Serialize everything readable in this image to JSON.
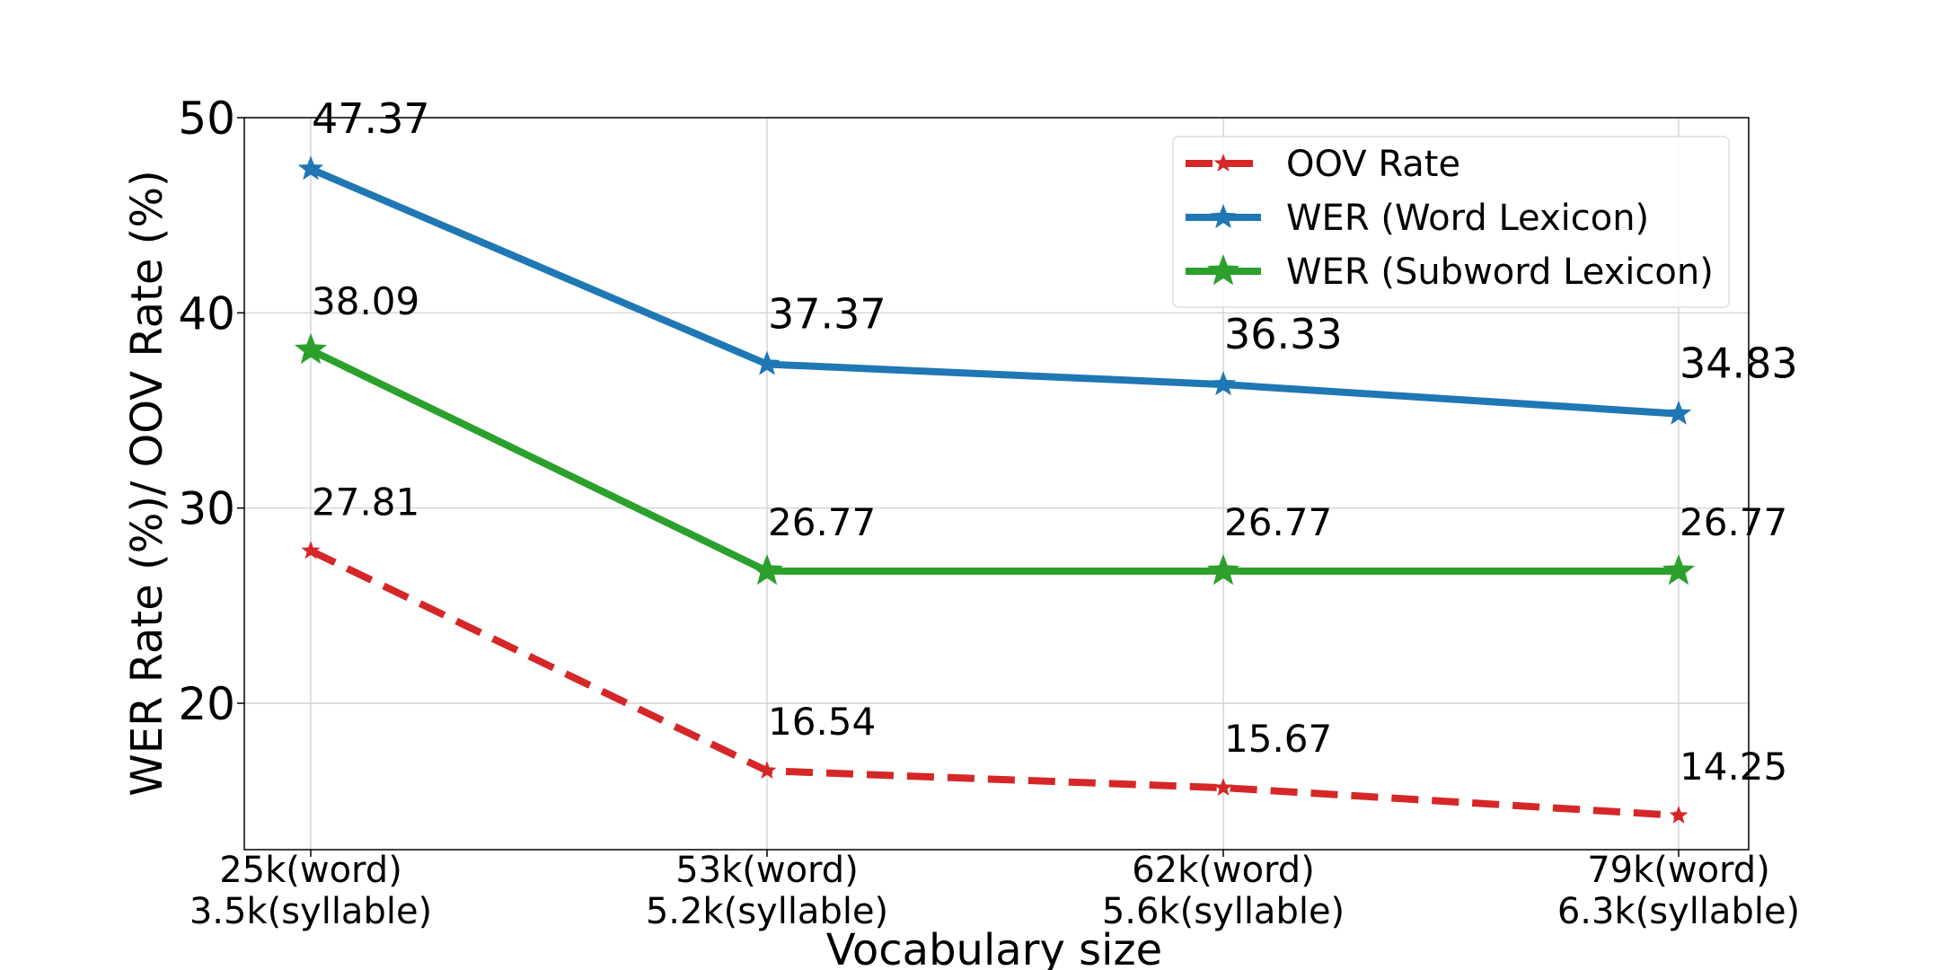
{
  "chart_data": {
    "type": "line",
    "categories": [
      [
        "25k(word)",
        "3.5k(syllable)"
      ],
      [
        "53k(word)",
        "5.2k(syllable)"
      ],
      [
        "62k(word)",
        "5.6k(syllable)"
      ],
      [
        "79k(word)",
        "6.3k(syllable)"
      ]
    ],
    "xlabel": "Vocabulary size",
    "ylabel": "WER Rate (%)/ OOV Rate (%)",
    "ylim": [
      12.5,
      50
    ],
    "yticks": [
      20,
      30,
      40,
      50
    ],
    "grid": true,
    "legend_position": "top-right",
    "series": [
      {
        "name": "OOV Rate",
        "values": [
          27.81,
          16.54,
          15.67,
          14.25
        ],
        "labels": [
          "27.81",
          "16.54",
          "15.67",
          "14.25"
        ],
        "color": "#d62728",
        "line_style": "dashed",
        "marker": "star"
      },
      {
        "name": "WER (Word Lexicon)",
        "values": [
          47.37,
          37.37,
          36.33,
          34.83
        ],
        "labels": [
          "47.37",
          "37.37",
          "36.33",
          "34.83"
        ],
        "color": "#1f77b4",
        "line_style": "solid",
        "marker": "star"
      },
      {
        "name": "WER (Subword Lexicon)",
        "values": [
          38.09,
          26.77,
          26.77,
          26.77
        ],
        "labels": [
          "38.09",
          "26.77",
          "26.77",
          "26.77"
        ],
        "color": "#2ca02c",
        "line_style": "solid",
        "marker": "star"
      }
    ]
  }
}
